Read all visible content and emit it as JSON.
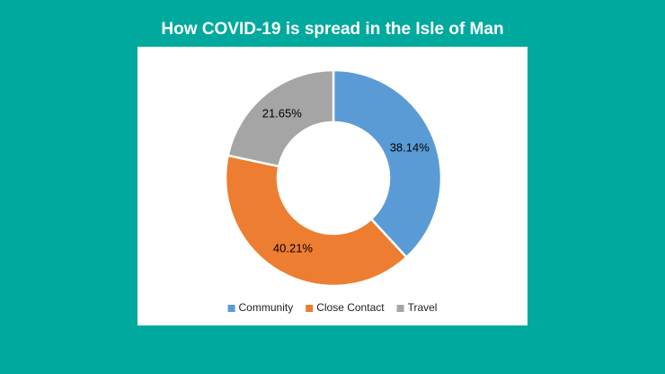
{
  "chart_data": {
    "type": "donut",
    "title": "How COVID-19 is spread in the Isle of Man",
    "categories": [
      "Community",
      "Close Contact",
      "Travel"
    ],
    "values": [
      38.14,
      40.21,
      21.65
    ],
    "value_labels": [
      "38.14%",
      "40.21%",
      "21.65%"
    ],
    "colors": [
      "#5b9bd5",
      "#ed7d31",
      "#a5a5a5"
    ],
    "legend": "bottom"
  }
}
